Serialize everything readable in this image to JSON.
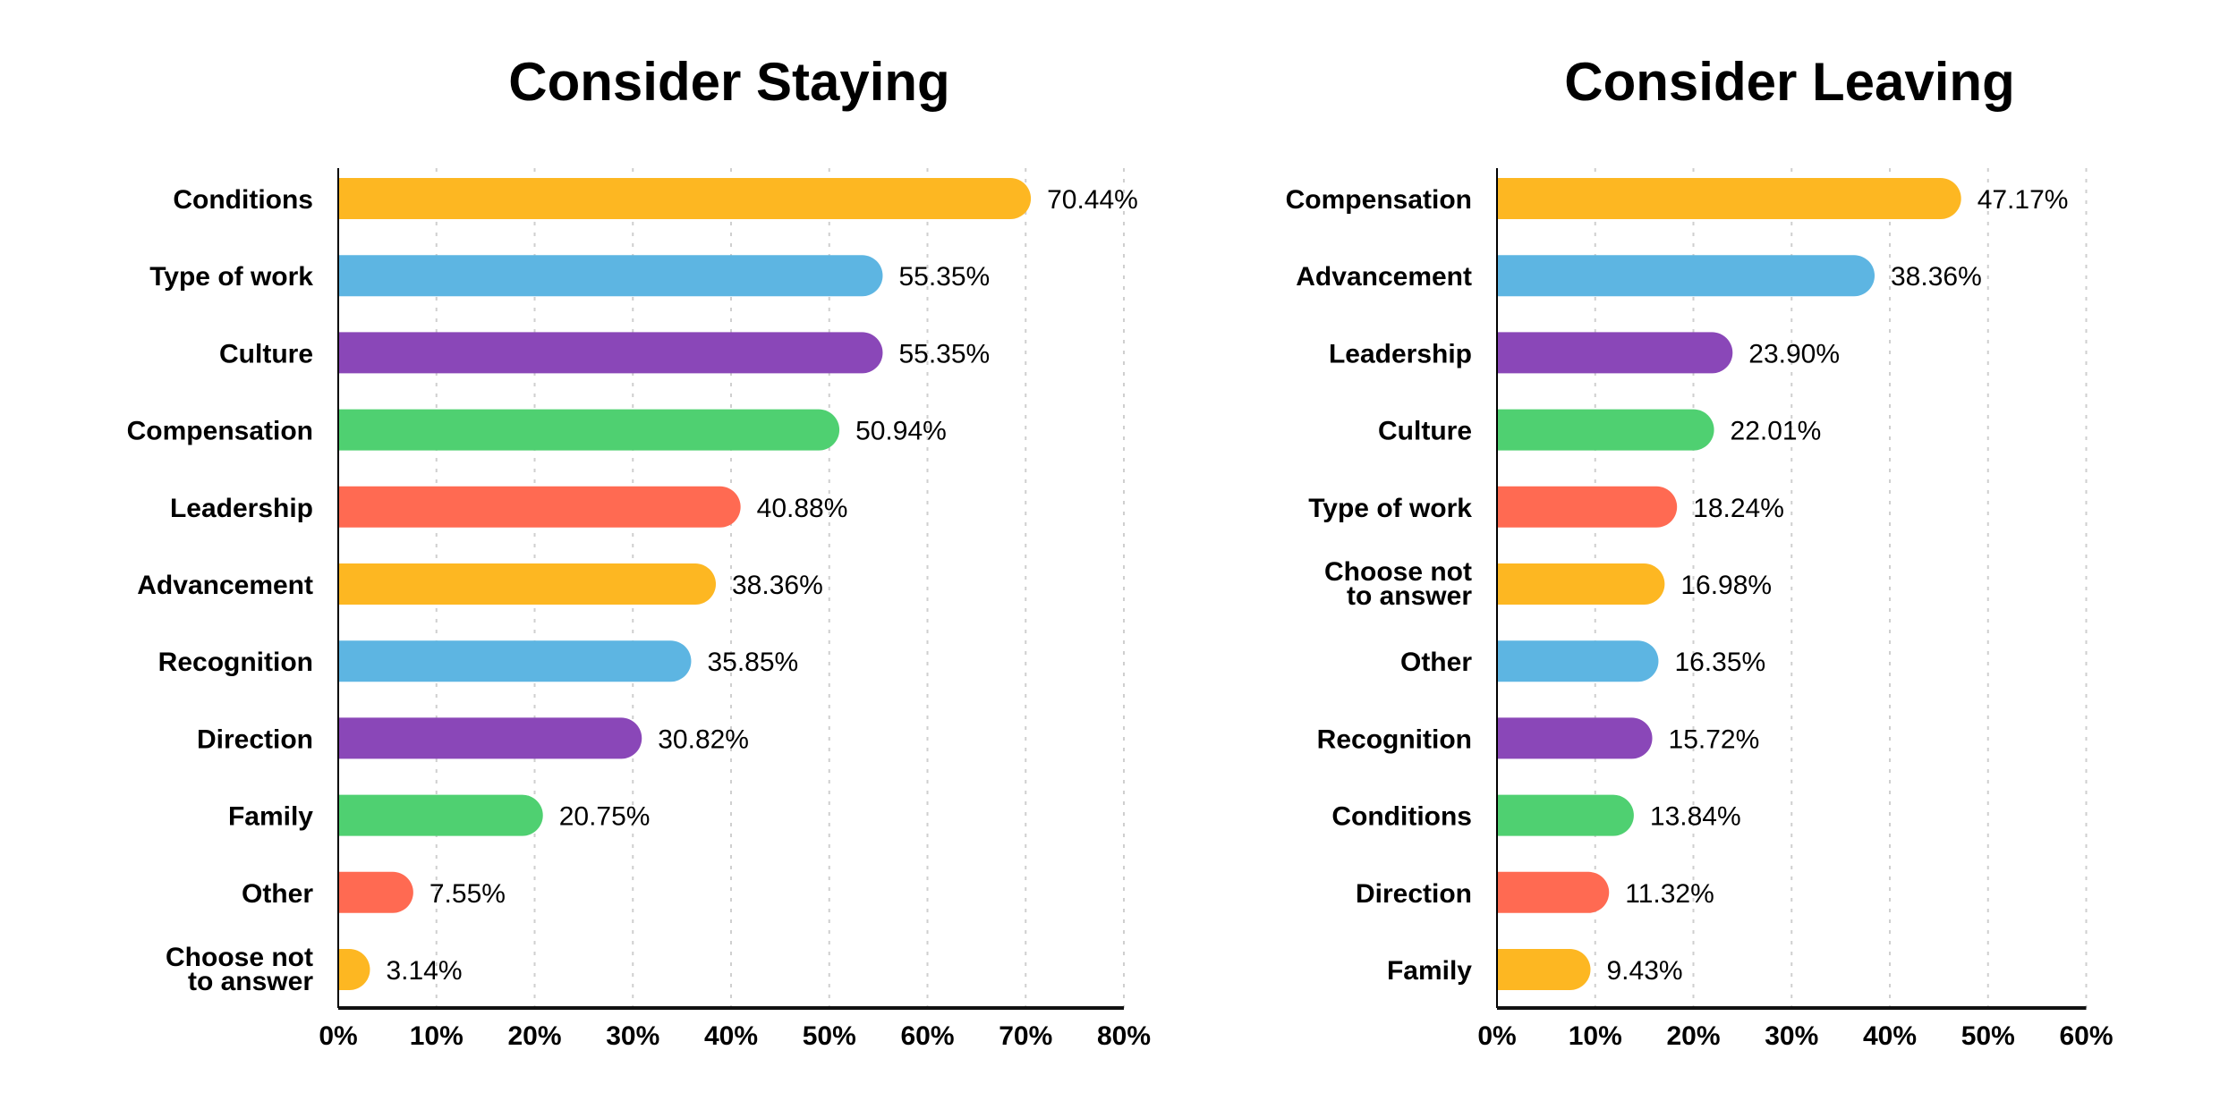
{
  "chart_data": [
    {
      "type": "bar",
      "orientation": "horizontal",
      "title": "Consider Staying",
      "xlabel": "",
      "ylabel": "",
      "xlim": [
        0,
        80
      ],
      "ticks": [
        "0%",
        "10%",
        "20%",
        "30%",
        "40%",
        "50%",
        "60%",
        "70%",
        "80%"
      ],
      "tick_values": [
        0,
        10,
        20,
        30,
        40,
        50,
        60,
        70,
        80
      ],
      "grid": "vertical dotted",
      "categories": [
        "Conditions",
        "Type of work",
        "Culture",
        "Compensation",
        "Leadership",
        "Advancement",
        "Recognition",
        "Direction",
        "Family",
        "Other",
        "Choose not to answer"
      ],
      "values": [
        70.44,
        55.35,
        55.35,
        50.94,
        40.88,
        38.36,
        35.85,
        30.82,
        20.75,
        7.55,
        3.14
      ],
      "labels": [
        "70.44%",
        "55.35%",
        "55.35%",
        "50.94%",
        "40.88%",
        "38.36%",
        "35.85%",
        "30.82%",
        "20.75%",
        "7.55%",
        "3.14%"
      ]
    },
    {
      "type": "bar",
      "orientation": "horizontal",
      "title": "Consider Leaving",
      "xlabel": "",
      "ylabel": "",
      "xlim": [
        0,
        60
      ],
      "ticks": [
        "0%",
        "10%",
        "20%",
        "30%",
        "40%",
        "50%",
        "60%"
      ],
      "tick_values": [
        0,
        10,
        20,
        30,
        40,
        50,
        60
      ],
      "grid": "vertical dotted",
      "categories": [
        "Compensation",
        "Advancement",
        "Leadership",
        "Culture",
        "Type of work",
        "Choose not to answer",
        "Other",
        "Recognition",
        "Conditions",
        "Direction",
        "Family"
      ],
      "values": [
        47.17,
        38.36,
        23.9,
        22.01,
        18.24,
        16.98,
        16.35,
        15.72,
        13.84,
        11.32,
        9.43
      ],
      "labels": [
        "47.17%",
        "38.36%",
        "23.90%",
        "22.01%",
        "18.24%",
        "16.98%",
        "16.35%",
        "15.72%",
        "13.84%",
        "11.32%",
        "9.43%"
      ]
    }
  ],
  "palette": [
    "#fdb722",
    "#5db5e2",
    "#8a47b8",
    "#4fd071",
    "#ff6a52"
  ]
}
